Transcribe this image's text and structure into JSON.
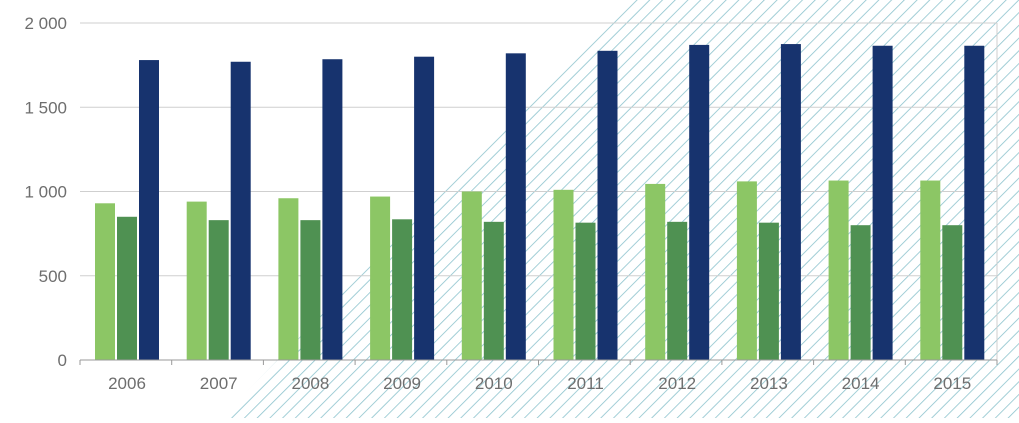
{
  "chart_data": {
    "type": "bar",
    "title": "",
    "xlabel": "",
    "ylabel": "",
    "categories": [
      "2006",
      "2007",
      "2008",
      "2009",
      "2010",
      "2011",
      "2012",
      "2013",
      "2014",
      "2015"
    ],
    "series": [
      {
        "values": [
          930,
          940,
          960,
          970,
          1000,
          1010,
          1045,
          1060,
          1065,
          1065
        ]
      },
      {
        "values": [
          850,
          830,
          830,
          835,
          820,
          815,
          820,
          815,
          800,
          800
        ]
      },
      {
        "values": [
          1780,
          1770,
          1785,
          1800,
          1820,
          1835,
          1870,
          1875,
          1865,
          1865
        ]
      }
    ],
    "ylim": [
      0,
      2000
    ],
    "yticks": [
      0,
      500,
      1000,
      1500,
      2000
    ],
    "ytick_labels": [
      "0",
      "500",
      "1 000",
      "1 500",
      "2 000"
    ],
    "grid": true,
    "legend": "none",
    "projection_from": "2008",
    "colors": {
      "series": [
        "#8cc665",
        "#4f9152",
        "#17336e"
      ],
      "grid": "#cfcfcf",
      "axis": "#999999",
      "tick_text": "#6e6e6e",
      "hatch": "#8cc3cd"
    }
  }
}
